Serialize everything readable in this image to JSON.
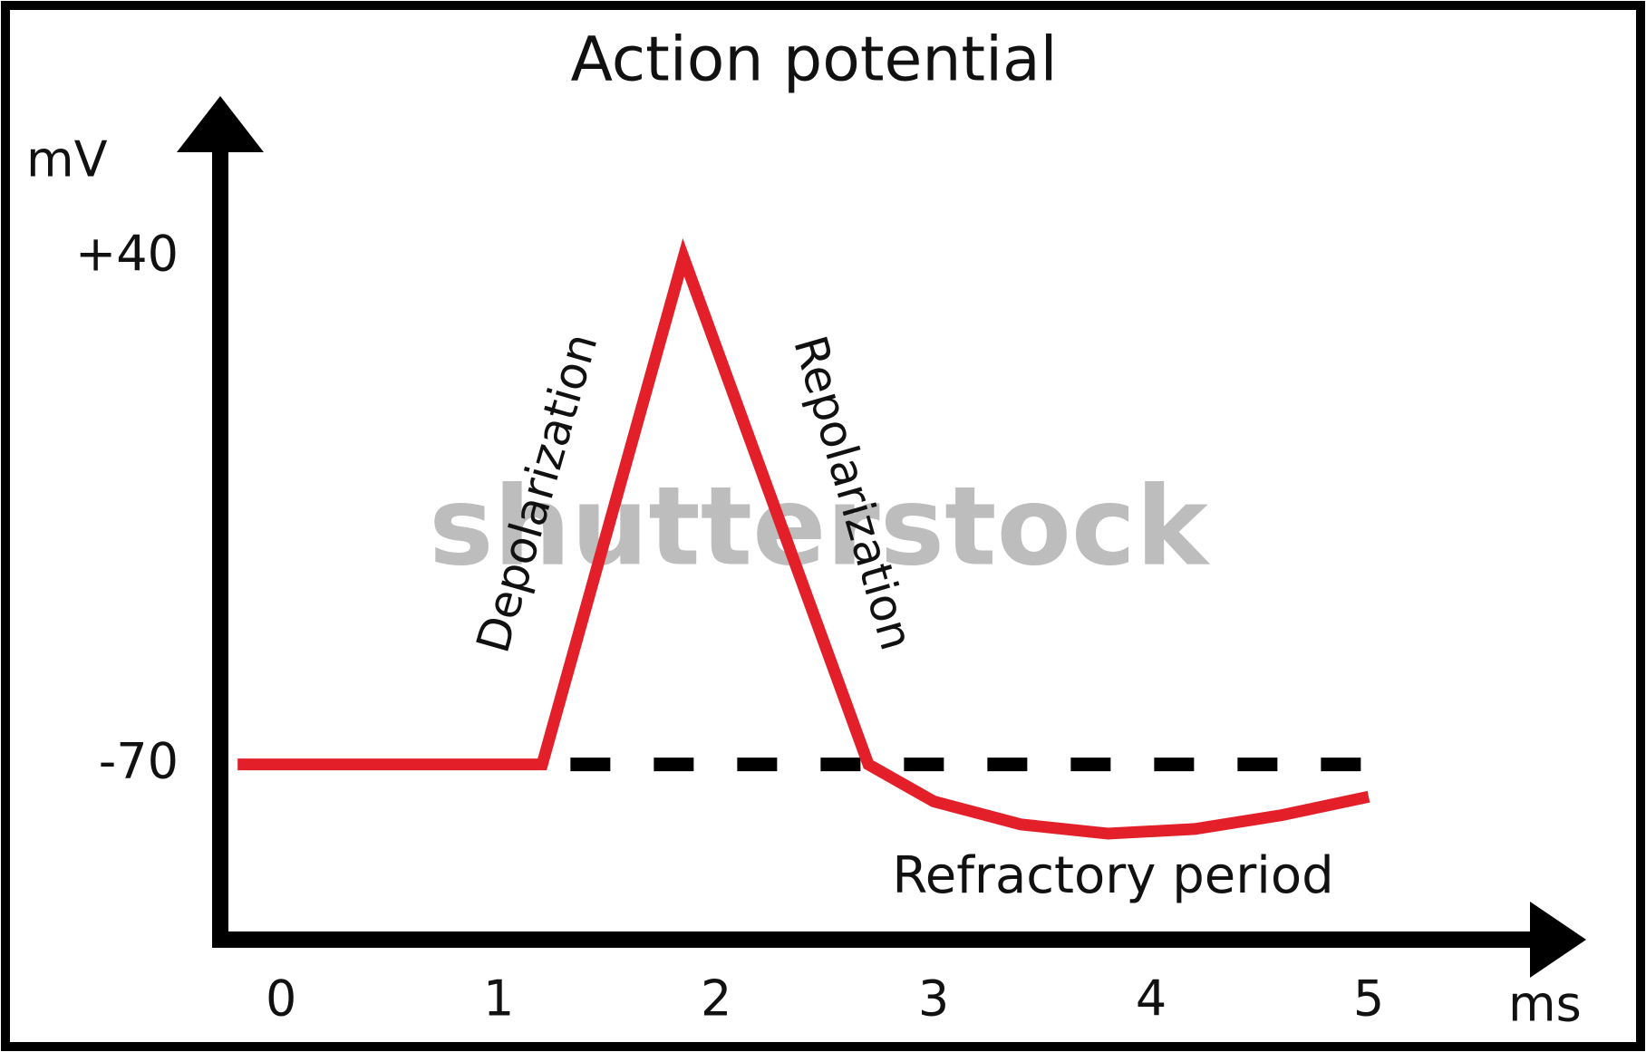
{
  "chart_data": {
    "type": "line",
    "title": "Action potential",
    "y_label": "mV",
    "x_label": "ms",
    "x": [
      -0.2,
      1.2,
      1.85,
      2.7,
      3.0,
      3.4,
      3.8,
      4.2,
      4.6,
      5.0
    ],
    "values": [
      -70,
      -70,
      40,
      -70,
      -78,
      -83,
      -85,
      -84,
      -81,
      -77
    ],
    "color": "#e3202a",
    "xlim": [
      -0.28,
      6.0
    ],
    "ylim": [
      -108,
      75
    ],
    "xticks": [
      0,
      1,
      2,
      3,
      4,
      5
    ],
    "yticks": [
      {
        "value": 40,
        "label": "+40"
      },
      {
        "value": -70,
        "label": "-70"
      }
    ],
    "reference_line": {
      "y": -70,
      "x": [
        1.33,
        5.05
      ]
    },
    "annotations": [
      "Depolarization",
      "Repolarization",
      "Refractory period"
    ],
    "watermark": "shutterstock"
  }
}
